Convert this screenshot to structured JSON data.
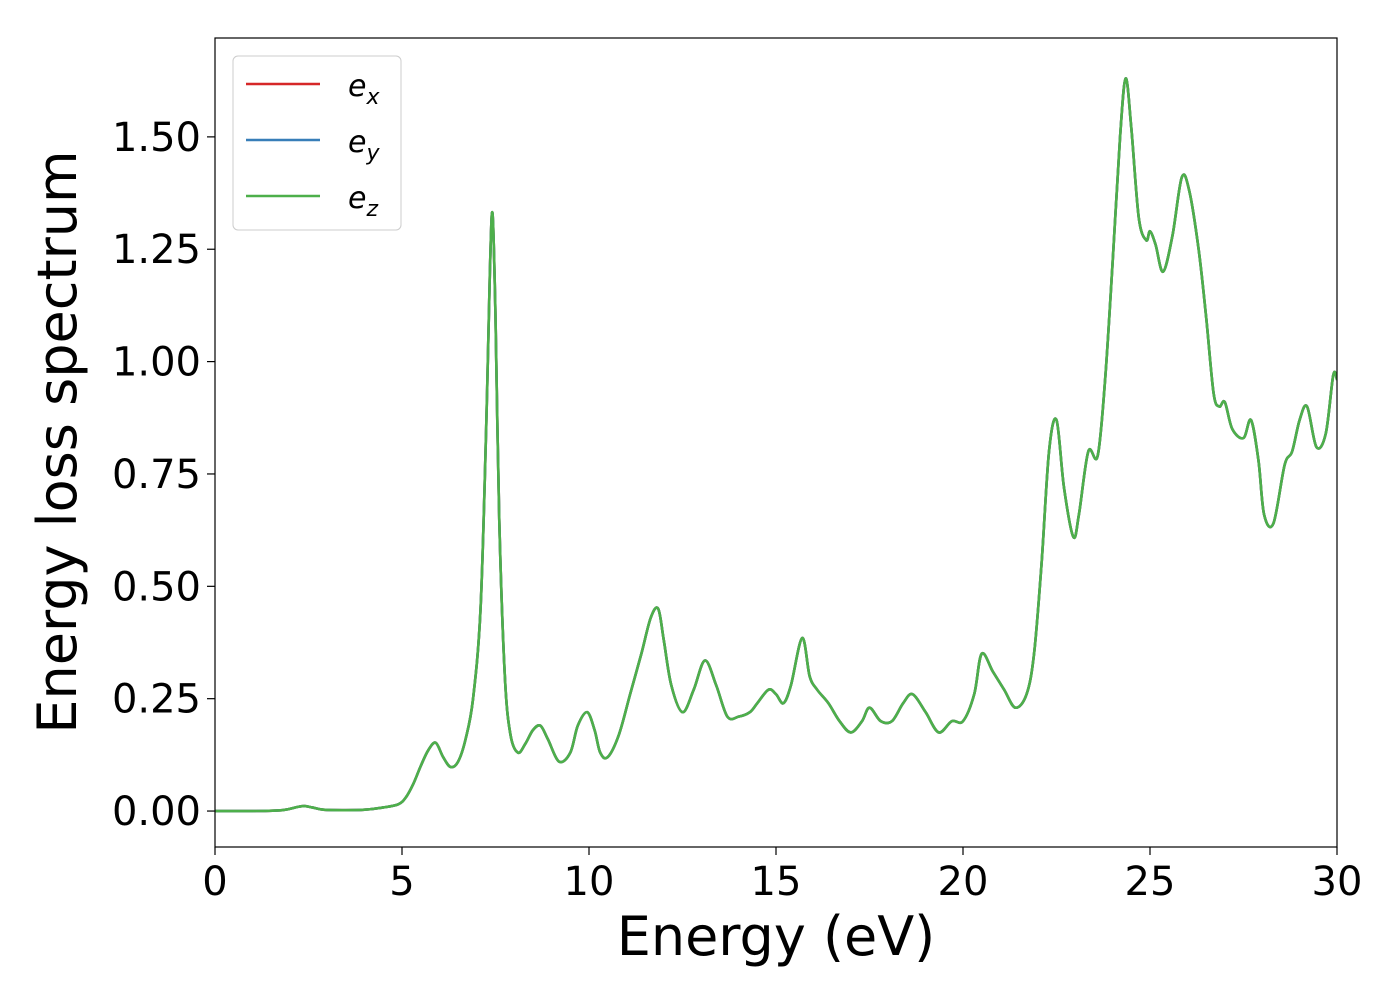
{
  "chart_data": {
    "type": "line",
    "xlabel": "Energy (eV)",
    "ylabel": "Energy loss spectrum",
    "xlim": [
      0,
      30
    ],
    "ylim": [
      -0.08,
      1.72
    ],
    "xticks": [
      0,
      5,
      10,
      15,
      20,
      25,
      30
    ],
    "xtick_labels": [
      "0",
      "5",
      "10",
      "15",
      "20",
      "25",
      "30"
    ],
    "yticks": [
      0.0,
      0.25,
      0.5,
      0.75,
      1.0,
      1.25,
      1.5
    ],
    "ytick_labels": [
      "0.00",
      "0.25",
      "0.50",
      "0.75",
      "1.00",
      "1.25",
      "1.50"
    ],
    "grid": false,
    "legend_position": "upper-left",
    "x": [
      0,
      1,
      1.8,
      2.2,
      2.4,
      2.6,
      2.9,
      3.5,
      4.0,
      4.5,
      4.9,
      5.1,
      5.3,
      5.5,
      5.7,
      5.9,
      6.1,
      6.3,
      6.5,
      6.7,
      6.9,
      7.1,
      7.25,
      7.35,
      7.42,
      7.5,
      7.6,
      7.75,
      7.9,
      8.1,
      8.3,
      8.5,
      8.7,
      8.9,
      9.2,
      9.5,
      9.7,
      9.95,
      10.15,
      10.3,
      10.5,
      10.8,
      11.1,
      11.4,
      11.65,
      11.85,
      12.0,
      12.2,
      12.5,
      12.8,
      13.1,
      13.4,
      13.7,
      14.0,
      14.3,
      14.5,
      14.8,
      15.0,
      15.2,
      15.4,
      15.7,
      15.9,
      16.1,
      16.4,
      16.7,
      17.0,
      17.3,
      17.5,
      17.8,
      18.1,
      18.4,
      18.65,
      19.0,
      19.35,
      19.7,
      20.0,
      20.3,
      20.5,
      20.8,
      21.1,
      21.4,
      21.7,
      21.9,
      22.1,
      22.3,
      22.5,
      22.7,
      22.95,
      23.1,
      23.35,
      23.6,
      23.8,
      24.0,
      24.2,
      24.35,
      24.5,
      24.7,
      24.9,
      25.0,
      25.15,
      25.35,
      25.6,
      25.85,
      26.05,
      26.3,
      26.5,
      26.7,
      26.85,
      27.0,
      27.2,
      27.5,
      27.7,
      27.9,
      28.05,
      28.3,
      28.6,
      28.8,
      29.0,
      29.2,
      29.45,
      29.7,
      29.9,
      30.0
    ],
    "series": [
      {
        "name": "e_x",
        "label_base": "e",
        "label_sub": "x",
        "color": "#d62728",
        "values": [
          0.0,
          0.0,
          0.002,
          0.009,
          0.011,
          0.008,
          0.003,
          0.002,
          0.003,
          0.008,
          0.015,
          0.03,
          0.06,
          0.1,
          0.135,
          0.152,
          0.12,
          0.098,
          0.11,
          0.16,
          0.25,
          0.45,
          0.85,
          1.2,
          1.33,
          1.1,
          0.65,
          0.3,
          0.17,
          0.13,
          0.15,
          0.18,
          0.19,
          0.16,
          0.11,
          0.13,
          0.19,
          0.22,
          0.18,
          0.13,
          0.12,
          0.17,
          0.26,
          0.35,
          0.43,
          0.45,
          0.38,
          0.28,
          0.22,
          0.27,
          0.335,
          0.28,
          0.21,
          0.21,
          0.22,
          0.24,
          0.27,
          0.26,
          0.24,
          0.28,
          0.385,
          0.3,
          0.27,
          0.24,
          0.2,
          0.175,
          0.2,
          0.23,
          0.2,
          0.2,
          0.24,
          0.26,
          0.22,
          0.175,
          0.2,
          0.2,
          0.26,
          0.35,
          0.31,
          0.27,
          0.23,
          0.26,
          0.35,
          0.55,
          0.8,
          0.87,
          0.72,
          0.61,
          0.66,
          0.8,
          0.79,
          0.96,
          1.22,
          1.5,
          1.63,
          1.52,
          1.32,
          1.27,
          1.29,
          1.26,
          1.2,
          1.28,
          1.41,
          1.38,
          1.25,
          1.1,
          0.93,
          0.9,
          0.91,
          0.85,
          0.83,
          0.87,
          0.78,
          0.66,
          0.64,
          0.77,
          0.8,
          0.87,
          0.9,
          0.81,
          0.84,
          0.97,
          0.96
        ]
      },
      {
        "name": "e_y",
        "label_base": "e",
        "label_sub": "y",
        "color": "#377eb8",
        "values": [
          0.0,
          0.0,
          0.002,
          0.009,
          0.011,
          0.008,
          0.003,
          0.002,
          0.003,
          0.008,
          0.015,
          0.03,
          0.06,
          0.1,
          0.135,
          0.152,
          0.12,
          0.098,
          0.11,
          0.16,
          0.25,
          0.45,
          0.85,
          1.2,
          1.33,
          1.1,
          0.65,
          0.3,
          0.17,
          0.13,
          0.15,
          0.18,
          0.19,
          0.16,
          0.11,
          0.13,
          0.19,
          0.22,
          0.18,
          0.13,
          0.12,
          0.17,
          0.26,
          0.35,
          0.43,
          0.45,
          0.38,
          0.28,
          0.22,
          0.27,
          0.335,
          0.28,
          0.21,
          0.21,
          0.22,
          0.24,
          0.27,
          0.26,
          0.24,
          0.28,
          0.385,
          0.3,
          0.27,
          0.24,
          0.2,
          0.175,
          0.2,
          0.23,
          0.2,
          0.2,
          0.24,
          0.26,
          0.22,
          0.175,
          0.2,
          0.2,
          0.26,
          0.35,
          0.31,
          0.27,
          0.23,
          0.26,
          0.35,
          0.55,
          0.8,
          0.87,
          0.72,
          0.61,
          0.66,
          0.8,
          0.79,
          0.96,
          1.22,
          1.5,
          1.63,
          1.52,
          1.32,
          1.27,
          1.29,
          1.26,
          1.2,
          1.28,
          1.41,
          1.38,
          1.25,
          1.1,
          0.93,
          0.9,
          0.91,
          0.85,
          0.83,
          0.87,
          0.78,
          0.66,
          0.64,
          0.77,
          0.8,
          0.87,
          0.9,
          0.81,
          0.84,
          0.97,
          0.96
        ]
      },
      {
        "name": "e_z",
        "label_base": "e",
        "label_sub": "z",
        "color": "#4daf4a",
        "values": [
          0.0,
          0.0,
          0.002,
          0.009,
          0.011,
          0.008,
          0.003,
          0.002,
          0.003,
          0.008,
          0.015,
          0.03,
          0.06,
          0.1,
          0.135,
          0.152,
          0.12,
          0.098,
          0.11,
          0.16,
          0.25,
          0.45,
          0.85,
          1.2,
          1.33,
          1.1,
          0.65,
          0.3,
          0.17,
          0.13,
          0.15,
          0.18,
          0.19,
          0.16,
          0.11,
          0.13,
          0.19,
          0.22,
          0.18,
          0.13,
          0.12,
          0.17,
          0.26,
          0.35,
          0.43,
          0.45,
          0.38,
          0.28,
          0.22,
          0.27,
          0.335,
          0.28,
          0.21,
          0.21,
          0.22,
          0.24,
          0.27,
          0.26,
          0.24,
          0.28,
          0.385,
          0.3,
          0.27,
          0.24,
          0.2,
          0.175,
          0.2,
          0.23,
          0.2,
          0.2,
          0.24,
          0.26,
          0.22,
          0.175,
          0.2,
          0.2,
          0.26,
          0.35,
          0.31,
          0.27,
          0.23,
          0.26,
          0.35,
          0.55,
          0.8,
          0.87,
          0.72,
          0.61,
          0.66,
          0.8,
          0.79,
          0.96,
          1.22,
          1.5,
          1.63,
          1.52,
          1.32,
          1.27,
          1.29,
          1.26,
          1.2,
          1.28,
          1.41,
          1.38,
          1.25,
          1.1,
          0.93,
          0.9,
          0.91,
          0.85,
          0.83,
          0.87,
          0.78,
          0.66,
          0.64,
          0.77,
          0.8,
          0.87,
          0.9,
          0.81,
          0.84,
          0.97,
          0.96
        ]
      }
    ]
  }
}
